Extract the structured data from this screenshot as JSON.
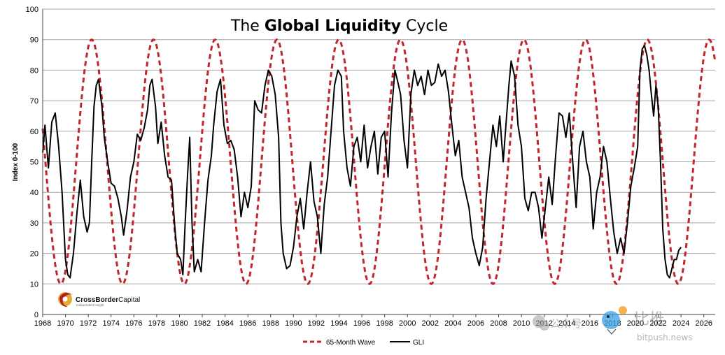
{
  "chart_data": {
    "type": "line",
    "title": {
      "prefix": "The ",
      "bold": "Global Liquidity",
      "suffix": " Cycle"
    },
    "ylabel": "Index 0-100",
    "xlabel": "",
    "ylim": [
      0,
      100
    ],
    "xlim": [
      1968,
      2027
    ],
    "yticks": [
      0,
      10,
      20,
      30,
      40,
      50,
      60,
      70,
      80,
      90,
      100
    ],
    "xticks": [
      1968,
      1970,
      1972,
      1974,
      1976,
      1978,
      1980,
      1982,
      1984,
      1986,
      1988,
      1990,
      1992,
      1994,
      1996,
      1998,
      2000,
      2002,
      2004,
      2006,
      2008,
      2010,
      2012,
      2014,
      2016,
      2018,
      2020,
      2022,
      2024,
      2026
    ],
    "grid": "horizontal",
    "legend": "bottom",
    "series": [
      {
        "name": "65-Month Wave",
        "color": "#c0262c",
        "style": "dashed",
        "wave": {
          "period_months": 65,
          "min": 10,
          "max": 90,
          "first_peak": 1972.3
        }
      },
      {
        "name": "GLI",
        "color": "#000000",
        "style": "solid",
        "points": [
          [
            1968.0,
            53
          ],
          [
            1968.2,
            62
          ],
          [
            1968.5,
            48
          ],
          [
            1968.8,
            63
          ],
          [
            1969.1,
            66
          ],
          [
            1969.4,
            55
          ],
          [
            1969.7,
            40
          ],
          [
            1970.0,
            18
          ],
          [
            1970.2,
            13
          ],
          [
            1970.4,
            12
          ],
          [
            1970.7,
            20
          ],
          [
            1971.0,
            33
          ],
          [
            1971.3,
            44
          ],
          [
            1971.6,
            32
          ],
          [
            1971.9,
            27
          ],
          [
            1972.1,
            30
          ],
          [
            1972.3,
            50
          ],
          [
            1972.5,
            68
          ],
          [
            1972.7,
            75
          ],
          [
            1972.9,
            77
          ],
          [
            1973.2,
            68
          ],
          [
            1973.4,
            58
          ],
          [
            1973.7,
            50
          ],
          [
            1974.0,
            43
          ],
          [
            1974.3,
            42
          ],
          [
            1974.6,
            38
          ],
          [
            1974.9,
            32
          ],
          [
            1975.1,
            26
          ],
          [
            1975.4,
            34
          ],
          [
            1975.7,
            45
          ],
          [
            1976.0,
            50
          ],
          [
            1976.3,
            59
          ],
          [
            1976.6,
            57
          ],
          [
            1976.9,
            61
          ],
          [
            1977.2,
            67
          ],
          [
            1977.4,
            75
          ],
          [
            1977.6,
            77
          ],
          [
            1977.9,
            68
          ],
          [
            1978.1,
            56
          ],
          [
            1978.4,
            63
          ],
          [
            1978.7,
            52
          ],
          [
            1979.0,
            45
          ],
          [
            1979.3,
            44
          ],
          [
            1979.6,
            28
          ],
          [
            1979.8,
            20
          ],
          [
            1980.1,
            18
          ],
          [
            1980.3,
            13
          ],
          [
            1980.5,
            30
          ],
          [
            1980.7,
            45
          ],
          [
            1980.9,
            58
          ],
          [
            1981.1,
            30
          ],
          [
            1981.3,
            14
          ],
          [
            1981.6,
            18
          ],
          [
            1981.9,
            14
          ],
          [
            1982.2,
            30
          ],
          [
            1982.5,
            44
          ],
          [
            1982.8,
            52
          ],
          [
            1983.0,
            62
          ],
          [
            1983.3,
            73
          ],
          [
            1983.6,
            77
          ],
          [
            1983.9,
            62
          ],
          [
            1984.2,
            56
          ],
          [
            1984.5,
            57
          ],
          [
            1984.8,
            54
          ],
          [
            1985.1,
            45
          ],
          [
            1985.4,
            32
          ],
          [
            1985.7,
            40
          ],
          [
            1986.0,
            35
          ],
          [
            1986.3,
            42
          ],
          [
            1986.6,
            70
          ],
          [
            1986.9,
            67
          ],
          [
            1987.2,
            66
          ],
          [
            1987.5,
            75
          ],
          [
            1987.8,
            80
          ],
          [
            1988.1,
            78
          ],
          [
            1988.4,
            72
          ],
          [
            1988.7,
            58
          ],
          [
            1988.9,
            30
          ],
          [
            1989.1,
            20
          ],
          [
            1989.4,
            15
          ],
          [
            1989.7,
            16
          ],
          [
            1990.0,
            22
          ],
          [
            1990.3,
            32
          ],
          [
            1990.6,
            38
          ],
          [
            1990.9,
            28
          ],
          [
            1991.2,
            40
          ],
          [
            1991.5,
            50
          ],
          [
            1991.8,
            37
          ],
          [
            1992.1,
            32
          ],
          [
            1992.4,
            20
          ],
          [
            1992.7,
            36
          ],
          [
            1993.0,
            45
          ],
          [
            1993.3,
            60
          ],
          [
            1993.6,
            75
          ],
          [
            1993.9,
            80
          ],
          [
            1994.2,
            78
          ],
          [
            1994.4,
            60
          ],
          [
            1994.7,
            48
          ],
          [
            1995.0,
            42
          ],
          [
            1995.3,
            55
          ],
          [
            1995.6,
            58
          ],
          [
            1995.9,
            50
          ],
          [
            1996.2,
            62
          ],
          [
            1996.5,
            48
          ],
          [
            1996.8,
            55
          ],
          [
            1997.1,
            60
          ],
          [
            1997.4,
            46
          ],
          [
            1997.7,
            58
          ],
          [
            1998.0,
            60
          ],
          [
            1998.3,
            45
          ],
          [
            1998.6,
            66
          ],
          [
            1998.9,
            80
          ],
          [
            1999.1,
            77
          ],
          [
            1999.4,
            72
          ],
          [
            1999.7,
            57
          ],
          [
            2000.0,
            48
          ],
          [
            2000.3,
            72
          ],
          [
            2000.6,
            80
          ],
          [
            2000.9,
            75
          ],
          [
            2001.2,
            78
          ],
          [
            2001.5,
            72
          ],
          [
            2001.8,
            80
          ],
          [
            2002.1,
            75
          ],
          [
            2002.4,
            76
          ],
          [
            2002.7,
            82
          ],
          [
            2003.0,
            78
          ],
          [
            2003.3,
            80
          ],
          [
            2003.6,
            73
          ],
          [
            2003.9,
            62
          ],
          [
            2004.2,
            52
          ],
          [
            2004.5,
            57
          ],
          [
            2004.8,
            45
          ],
          [
            2005.1,
            40
          ],
          [
            2005.4,
            35
          ],
          [
            2005.7,
            25
          ],
          [
            2006.0,
            20
          ],
          [
            2006.3,
            16
          ],
          [
            2006.6,
            22
          ],
          [
            2006.9,
            38
          ],
          [
            2007.2,
            50
          ],
          [
            2007.5,
            62
          ],
          [
            2007.8,
            55
          ],
          [
            2008.1,
            65
          ],
          [
            2008.4,
            50
          ],
          [
            2008.7,
            65
          ],
          [
            2008.9,
            75
          ],
          [
            2009.1,
            83
          ],
          [
            2009.4,
            78
          ],
          [
            2009.7,
            62
          ],
          [
            2010.0,
            55
          ],
          [
            2010.3,
            38
          ],
          [
            2010.6,
            34
          ],
          [
            2010.9,
            40
          ],
          [
            2011.2,
            40
          ],
          [
            2011.5,
            35
          ],
          [
            2011.8,
            25
          ],
          [
            2012.1,
            35
          ],
          [
            2012.4,
            45
          ],
          [
            2012.7,
            36
          ],
          [
            2013.0,
            52
          ],
          [
            2013.3,
            66
          ],
          [
            2013.6,
            65
          ],
          [
            2013.9,
            58
          ],
          [
            2014.2,
            66
          ],
          [
            2014.5,
            50
          ],
          [
            2014.8,
            35
          ],
          [
            2015.1,
            55
          ],
          [
            2015.4,
            60
          ],
          [
            2015.7,
            50
          ],
          [
            2016.0,
            45
          ],
          [
            2016.3,
            28
          ],
          [
            2016.6,
            40
          ],
          [
            2016.9,
            45
          ],
          [
            2017.2,
            55
          ],
          [
            2017.5,
            50
          ],
          [
            2017.8,
            38
          ],
          [
            2018.1,
            27
          ],
          [
            2018.4,
            20
          ],
          [
            2018.7,
            25
          ],
          [
            2019.0,
            20
          ],
          [
            2019.3,
            30
          ],
          [
            2019.6,
            42
          ],
          [
            2019.9,
            48
          ],
          [
            2020.2,
            55
          ],
          [
            2020.4,
            80
          ],
          [
            2020.6,
            87
          ],
          [
            2020.8,
            88
          ],
          [
            2021.0,
            85
          ],
          [
            2021.2,
            80
          ],
          [
            2021.4,
            72
          ],
          [
            2021.6,
            65
          ],
          [
            2021.8,
            75
          ],
          [
            2022.0,
            68
          ],
          [
            2022.2,
            50
          ],
          [
            2022.4,
            28
          ],
          [
            2022.6,
            18
          ],
          [
            2022.8,
            13
          ],
          [
            2023.0,
            12
          ],
          [
            2023.2,
            15
          ],
          [
            2023.4,
            18
          ],
          [
            2023.6,
            18
          ],
          [
            2023.8,
            21
          ],
          [
            2024.0,
            22
          ]
        ]
      }
    ]
  },
  "logo": {
    "name_bold": "CrossBorder",
    "name_rest": "Capital",
    "tagline": "Independent Insight"
  },
  "watermark": {
    "cn_left": "公众号",
    "cn_right": "比推",
    "domain": "bitpush.news"
  },
  "colors": {
    "wave": "#c0262c",
    "gli": "#000000",
    "grid": "#a6a6a6",
    "logo_gold": "#e0a11b",
    "logo_red": "#b31f24"
  }
}
